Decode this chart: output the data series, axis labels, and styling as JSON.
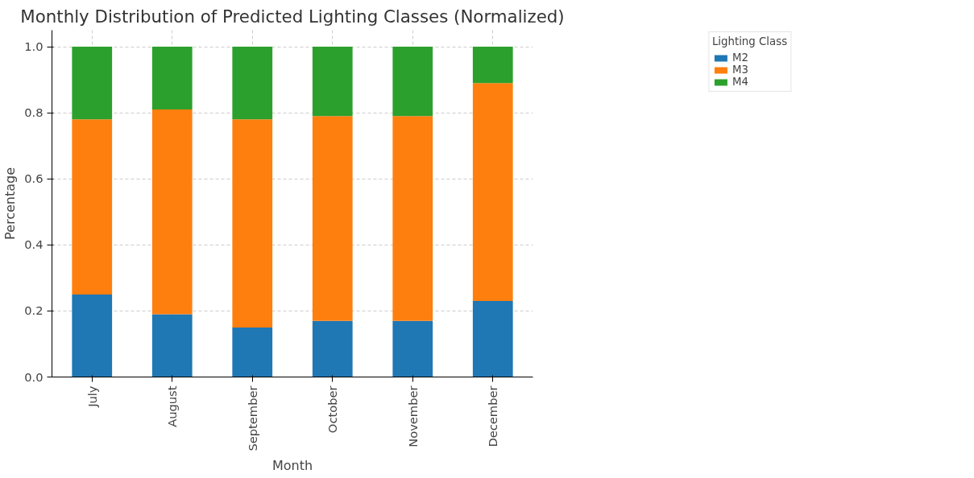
{
  "chart_data": {
    "type": "bar",
    "title": "Monthly Distribution of Predicted Lighting Classes (Normalized)",
    "xlabel": "Month",
    "ylabel": "Percentage",
    "legend_title": "Lighting Class",
    "categories": [
      "July",
      "August",
      "September",
      "October",
      "November",
      "December"
    ],
    "stacked": true,
    "series": [
      {
        "name": "M2",
        "color": "#1f77b4",
        "values": [
          0.25,
          0.19,
          0.15,
          0.17,
          0.17,
          0.23
        ]
      },
      {
        "name": "M3",
        "color": "#ff7f0e",
        "values": [
          0.53,
          0.62,
          0.63,
          0.62,
          0.62,
          0.66
        ]
      },
      {
        "name": "M4",
        "color": "#2ca02c",
        "values": [
          0.22,
          0.19,
          0.22,
          0.21,
          0.21,
          0.11
        ]
      }
    ],
    "ylim": [
      0,
      1.05
    ],
    "yticks": [
      {
        "value": 0,
        "label": "0.0"
      },
      {
        "value": 0.2,
        "label": "0.2"
      },
      {
        "value": 0.4,
        "label": "0.4"
      },
      {
        "value": 0.6,
        "label": "0.6"
      },
      {
        "value": 0.8,
        "label": "0.8"
      },
      {
        "value": 1,
        "label": "1.0"
      }
    ],
    "grid": true,
    "legend": "top right"
  }
}
